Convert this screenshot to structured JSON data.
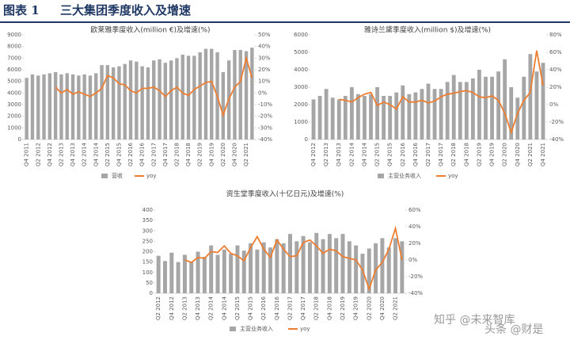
{
  "header": {
    "figure_label": "图表 1",
    "title": "三大集团季度收入及增速"
  },
  "watermarks": [
    "知乎 @未来智库",
    "头条 @财是"
  ],
  "chart_data": [
    {
      "type": "combo",
      "title": "欧莱雅季度收入(million €)及增速(%)",
      "categories": [
        "Q4 2011",
        null,
        "Q2 2012",
        null,
        "Q4 2012",
        null,
        "Q2 2013",
        null,
        "Q4 2013",
        null,
        "Q2 2014",
        null,
        "Q4 2014",
        null,
        "Q2 2015",
        null,
        "Q4 2015",
        null,
        "Q2 2016",
        null,
        "Q4 2016",
        null,
        "Q2 2017",
        null,
        "Q4 2017",
        null,
        "Q2 2018",
        null,
        "Q4 2018",
        null,
        "Q2 2019",
        null,
        "Q4 2019",
        null,
        "Q2 2020",
        null,
        "Q4 2020",
        null,
        "Q2 2021",
        null
      ],
      "series": [
        {
          "name": "营收",
          "type": "bar",
          "color": "#a6a6a6",
          "values": [
            5300,
            5600,
            5500,
            5600,
            5700,
            5800,
            5600,
            5700,
            5600,
            5500,
            5600,
            5500,
            5700,
            6400,
            6400,
            6200,
            6300,
            6500,
            6800,
            6700,
            6300,
            6200,
            6800,
            6900,
            6600,
            6800,
            7000,
            7300,
            7200,
            7200,
            7500,
            7800,
            7800,
            7500,
            5800,
            6800,
            7700,
            7700,
            7600,
            7900
          ]
        },
        {
          "name": "yoy",
          "type": "line",
          "axis": "y2",
          "color": "#ed7d31",
          "values": [
            null,
            null,
            null,
            null,
            null,
            5,
            0,
            3,
            -1,
            1,
            -1,
            -3,
            0,
            4,
            15,
            13,
            8,
            7,
            2,
            0,
            4,
            4,
            5,
            2,
            -3,
            2,
            5,
            0,
            -2,
            3,
            6,
            9,
            10,
            -3,
            -19,
            -5,
            5,
            10,
            30,
            13
          ]
        }
      ],
      "ylim": [
        0,
        9000
      ],
      "yticks": [
        0,
        1000,
        2000,
        3000,
        4000,
        5000,
        6000,
        7000,
        8000,
        9000
      ],
      "y2lim": [
        -40,
        50
      ],
      "y2ticks": [
        {
          "value": -40,
          "label": "-40%"
        },
        {
          "value": -30,
          "label": "-30%"
        },
        {
          "value": -20,
          "label": "-20%"
        },
        {
          "value": -10,
          "label": "-10%"
        },
        {
          "value": 0,
          "label": "0%"
        },
        {
          "value": 10,
          "label": "10%"
        },
        {
          "value": 20,
          "label": "20%"
        },
        {
          "value": 30,
          "label": "30%"
        },
        {
          "value": 40,
          "label": "40%"
        },
        {
          "value": 50,
          "label": "50%"
        }
      ],
      "legend": "bottom"
    },
    {
      "type": "combo",
      "title": "雅诗兰黛季度收入(million $)及增速(%)",
      "categories": [
        "Q4 2012",
        null,
        "Q2 2013",
        null,
        "Q4 2013",
        null,
        "Q2 2014",
        null,
        "Q4 2014",
        null,
        "Q2 2015",
        null,
        "Q4 2015",
        null,
        "Q2 2016",
        null,
        "Q4 2016",
        null,
        "Q2 2017",
        null,
        "Q4 2017",
        null,
        "Q2 2018",
        null,
        "Q4 2018",
        null,
        "Q2 2019",
        null,
        "Q4 2019",
        null,
        "Q2 2020",
        null,
        "Q4 2020",
        null,
        "Q2 2021",
        null,
        "Q4 2021"
      ],
      "series": [
        {
          "name": "主营业务收入",
          "type": "bar",
          "color": "#a6a6a6",
          "values": [
            2300,
            2500,
            2900,
            2400,
            2300,
            2500,
            3000,
            2600,
            2500,
            2600,
            3000,
            2500,
            2500,
            2700,
            3100,
            2600,
            2700,
            2900,
            3200,
            2900,
            2900,
            3300,
            3700,
            3300,
            3300,
            3500,
            4000,
            3600,
            3600,
            3900,
            4600,
            3000,
            2400,
            3600,
            4900,
            3900,
            4400
          ]
        },
        {
          "name": "yoy",
          "type": "line",
          "axis": "y2",
          "color": "#ed7d31",
          "values": [
            null,
            null,
            null,
            null,
            6,
            5,
            3,
            8,
            12,
            14,
            -1,
            3,
            0,
            -5,
            9,
            3,
            3,
            5,
            2,
            4,
            9,
            12,
            13,
            15,
            16,
            14,
            9,
            8,
            10,
            5,
            -10,
            -32,
            -10,
            5,
            14,
            62,
            22
          ]
        }
      ],
      "ylim": [
        0,
        6000
      ],
      "yticks": [
        0,
        1000,
        2000,
        3000,
        4000,
        5000,
        6000
      ],
      "y2lim": [
        -40,
        80
      ],
      "y2ticks": [
        {
          "value": -40,
          "label": "-40%"
        },
        {
          "value": -20,
          "label": "-20%"
        },
        {
          "value": 0,
          "label": "0%"
        },
        {
          "value": 20,
          "label": "20%"
        },
        {
          "value": 40,
          "label": "40%"
        },
        {
          "value": 60,
          "label": "60%"
        },
        {
          "value": 80,
          "label": "80%"
        }
      ],
      "legend": "bottom"
    },
    {
      "type": "combo",
      "title": "资生堂季度收入(十亿日元)及增速(%)",
      "categories": [
        "Q2 2012",
        null,
        "Q4 2012",
        null,
        "Q2 2013",
        null,
        "Q4 2013",
        null,
        "Q2 2014",
        null,
        "Q4 2014",
        null,
        "Q2 2015",
        null,
        "Q4 2015",
        null,
        "Q2 2016",
        null,
        "Q4 2016",
        null,
        "Q2 2017",
        null,
        "Q4 2017",
        null,
        "Q2 2018",
        null,
        "Q4 2018",
        null,
        "Q2 2019",
        null,
        "Q4 2019",
        null,
        "Q2 2020",
        null,
        "Q4 2020",
        null,
        "Q2 2021",
        null
      ],
      "series": [
        {
          "name": "主营业务收入",
          "type": "bar",
          "color": "#a6a6a6",
          "values": [
            180,
            155,
            195,
            150,
            185,
            150,
            200,
            175,
            230,
            185,
            210,
            190,
            230,
            205,
            240,
            210,
            245,
            220,
            260,
            240,
            285,
            250,
            275,
            245,
            290,
            260,
            285,
            265,
            285,
            250,
            230,
            190,
            215,
            240,
            265,
            220,
            265,
            250
          ]
        },
        {
          "name": "yoy",
          "type": "line",
          "axis": "y2",
          "color": "#ed7d31",
          "values": [
            null,
            null,
            null,
            null,
            0,
            -3,
            3,
            2,
            10,
            9,
            17,
            8,
            5,
            -1,
            15,
            28,
            13,
            3,
            24,
            13,
            4,
            5,
            21,
            24,
            17,
            8,
            13,
            11,
            4,
            2,
            0,
            -12,
            -35,
            -12,
            -3,
            13,
            38,
            0
          ]
        }
      ],
      "ylim": [
        0,
        400
      ],
      "yticks": [
        0,
        50,
        100,
        150,
        200,
        250,
        300,
        350,
        400
      ],
      "y2lim": [
        -40,
        60
      ],
      "y2ticks": [
        {
          "value": -40,
          "label": "-40%"
        },
        {
          "value": -20,
          "label": "-20%"
        },
        {
          "value": 0,
          "label": "0%"
        },
        {
          "value": 20,
          "label": "20%"
        },
        {
          "value": 40,
          "label": "40%"
        },
        {
          "value": 60,
          "label": "60%"
        }
      ],
      "legend": "bottom"
    }
  ]
}
